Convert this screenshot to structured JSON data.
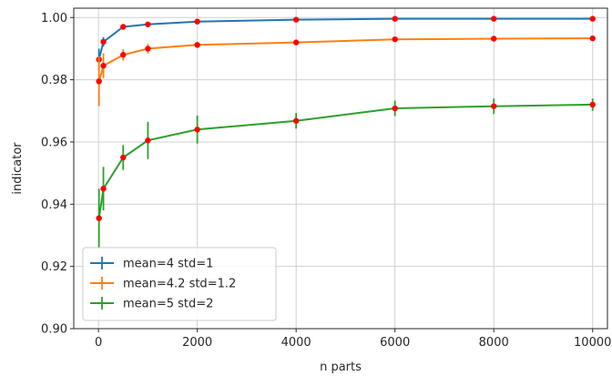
{
  "chart_data": {
    "type": "line",
    "xlabel": "n parts",
    "ylabel": "indicator",
    "xlim": [
      -500,
      10300
    ],
    "ylim": [
      0.9,
      1.003
    ],
    "xticks": [
      0,
      2000,
      4000,
      6000,
      8000,
      10000
    ],
    "xtick_labels": [
      "0",
      "2000",
      "4000",
      "6000",
      "8000",
      "10000"
    ],
    "yticks": [
      0.9,
      0.92,
      0.94,
      0.96,
      0.98,
      1.0
    ],
    "ytick_labels": [
      "0.90",
      "0.92",
      "0.94",
      "0.96",
      "0.98",
      "1.00"
    ],
    "grid": true,
    "legend_position": "lower-left",
    "marker_color": "#ff0000",
    "series": [
      {
        "name": "mean=4 std=1",
        "color": "#1f77b4",
        "x": [
          10,
          100,
          500,
          1000,
          2000,
          4000,
          6000,
          8000,
          10000
        ],
        "y": [
          0.9865,
          0.9922,
          0.997,
          0.9978,
          0.9987,
          0.9993,
          0.9996,
          0.9996,
          0.9996
        ],
        "err": [
          0.0035,
          0.0015,
          0.0007,
          0.0005,
          0.0003,
          0.0002,
          0.0002,
          0.0002,
          0.0002
        ]
      },
      {
        "name": "mean=4.2 std=1.2",
        "color": "#ff7f0e",
        "x": [
          10,
          100,
          500,
          1000,
          2000,
          4000,
          6000,
          8000,
          10000
        ],
        "y": [
          0.9795,
          0.9845,
          0.988,
          0.99,
          0.9912,
          0.992,
          0.993,
          0.9932,
          0.9933
        ],
        "err": [
          0.008,
          0.004,
          0.0018,
          0.0015,
          0.0008,
          0.0006,
          0.0005,
          0.0004,
          0.0004
        ]
      },
      {
        "name": "mean=5 std=2",
        "color": "#2ca02c",
        "x": [
          10,
          100,
          500,
          1000,
          2000,
          4000,
          6000,
          8000,
          10000
        ],
        "y": [
          0.9355,
          0.945,
          0.955,
          0.9605,
          0.964,
          0.9668,
          0.9708,
          0.9715,
          0.972
        ],
        "err": [
          0.0095,
          0.007,
          0.004,
          0.006,
          0.0045,
          0.0025,
          0.0025,
          0.0025,
          0.002
        ]
      }
    ]
  }
}
